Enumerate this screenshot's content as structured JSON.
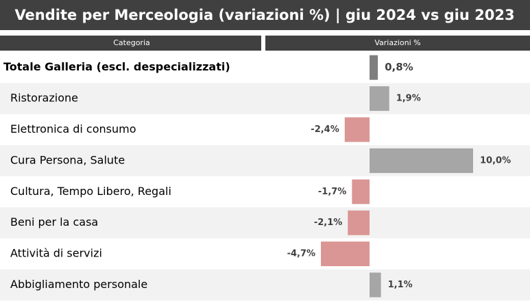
{
  "chart_data": {
    "type": "bar",
    "orientation": "horizontal",
    "title": "Vendite per Merceologia (variazioni %) | giu 2024 vs giu 2023",
    "column_headers": [
      "Categoria",
      "Variazioni %"
    ],
    "categories": [
      "Totale Galleria (escl. despecializzati)",
      "Ristorazione",
      "Elettronica di consumo",
      "Cura Persona, Salute",
      "Cultura, Tempo Libero, Regali",
      "Beni per la casa",
      "Attività di servizi",
      "Abbigliamento personale"
    ],
    "values": [
      0.8,
      1.9,
      -2.4,
      10.0,
      -1.7,
      -2.1,
      -4.7,
      1.1
    ],
    "value_labels": [
      "0,8%",
      "1,9%",
      "-2,4%",
      "10,0%",
      "-1,7%",
      "-2,1%",
      "-4,7%",
      "1,1%"
    ],
    "total_color": "#7f7f7f",
    "color": "#a6a6a6",
    "negative_color": "#da9694"
  }
}
